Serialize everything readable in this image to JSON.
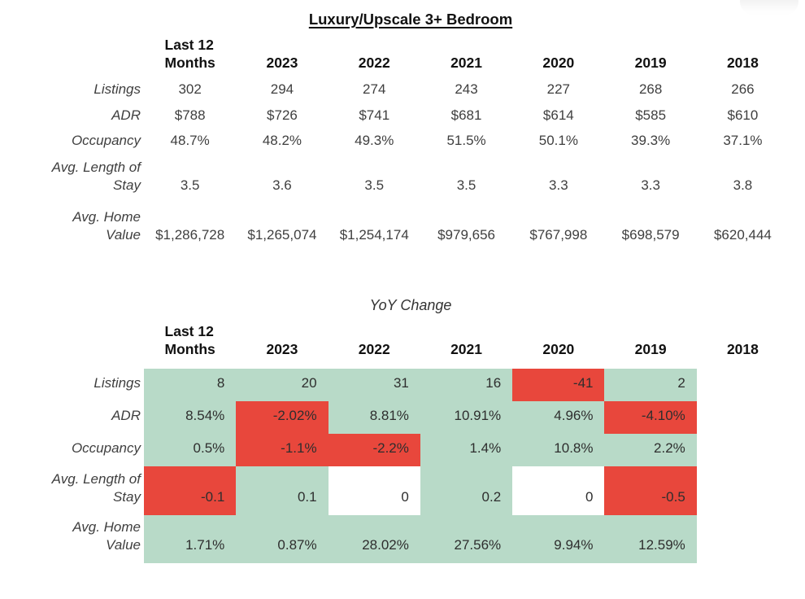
{
  "corner_widget": {
    "name": "partial-rounded-control"
  },
  "table1": {
    "title": "Luxury/Upscale 3+ Bedroom",
    "columns": [
      "Last 12\nMonths",
      "2023",
      "2022",
      "2021",
      "2020",
      "2019",
      "2018"
    ],
    "rows": [
      {
        "label": "Listings",
        "values": [
          "302",
          "294",
          "274",
          "243",
          "227",
          "268",
          "266"
        ]
      },
      {
        "label": "ADR",
        "values": [
          "$788",
          "$726",
          "$741",
          "$681",
          "$614",
          "$585",
          "$610"
        ]
      },
      {
        "label": "Occupancy",
        "values": [
          "48.7%",
          "48.2%",
          "49.3%",
          "51.5%",
          "50.1%",
          "39.3%",
          "37.1%"
        ]
      },
      {
        "label": "Avg. Length of\nStay",
        "values": [
          "3.5",
          "3.6",
          "3.5",
          "3.5",
          "3.3",
          "3.3",
          "3.8"
        ]
      },
      {
        "label": "Avg. Home\nValue",
        "values": [
          "$1,286,728",
          "$1,265,074",
          "$1,254,174",
          "$979,656",
          "$767,998",
          "$698,579",
          "$620,444"
        ]
      }
    ]
  },
  "table2": {
    "title": "YoY Change",
    "columns": [
      "Last 12\nMonths",
      "2023",
      "2022",
      "2021",
      "2020",
      "2019",
      "2018"
    ],
    "colors": {
      "positive": "#b8dac8",
      "negative": "#e8473c",
      "zero": "#ffffff"
    },
    "rows": [
      {
        "label": "Listings",
        "cells": [
          {
            "v": "8",
            "s": "positive"
          },
          {
            "v": "20",
            "s": "positive"
          },
          {
            "v": "31",
            "s": "positive"
          },
          {
            "v": "16",
            "s": "positive"
          },
          {
            "v": "-41",
            "s": "negative"
          },
          {
            "v": "2",
            "s": "positive"
          },
          {
            "v": "",
            "s": "none"
          }
        ]
      },
      {
        "label": "ADR",
        "cells": [
          {
            "v": "8.54%",
            "s": "positive"
          },
          {
            "v": "-2.02%",
            "s": "negative"
          },
          {
            "v": "8.81%",
            "s": "positive"
          },
          {
            "v": "10.91%",
            "s": "positive"
          },
          {
            "v": "4.96%",
            "s": "positive"
          },
          {
            "v": "-4.10%",
            "s": "negative"
          },
          {
            "v": "",
            "s": "none"
          }
        ]
      },
      {
        "label": "Occupancy",
        "cells": [
          {
            "v": "0.5%",
            "s": "positive"
          },
          {
            "v": "-1.1%",
            "s": "negative"
          },
          {
            "v": "-2.2%",
            "s": "negative"
          },
          {
            "v": "1.4%",
            "s": "positive"
          },
          {
            "v": "10.8%",
            "s": "positive"
          },
          {
            "v": "2.2%",
            "s": "positive"
          },
          {
            "v": "",
            "s": "none"
          }
        ]
      },
      {
        "label": "Avg. Length of\nStay",
        "cells": [
          {
            "v": "-0.1",
            "s": "negative"
          },
          {
            "v": "0.1",
            "s": "positive"
          },
          {
            "v": "0",
            "s": "zero"
          },
          {
            "v": "0.2",
            "s": "positive"
          },
          {
            "v": "0",
            "s": "zero"
          },
          {
            "v": "-0.5",
            "s": "negative"
          },
          {
            "v": "",
            "s": "none"
          }
        ]
      },
      {
        "label": "Avg. Home\nValue",
        "cells": [
          {
            "v": "1.71%",
            "s": "positive"
          },
          {
            "v": "0.87%",
            "s": "positive"
          },
          {
            "v": "28.02%",
            "s": "positive"
          },
          {
            "v": "27.56%",
            "s": "positive"
          },
          {
            "v": "9.94%",
            "s": "positive"
          },
          {
            "v": "12.59%",
            "s": "positive"
          },
          {
            "v": "",
            "s": "none"
          }
        ]
      }
    ]
  }
}
